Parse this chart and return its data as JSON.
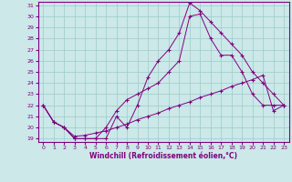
{
  "xlabel": "Windchill (Refroidissement éolien,°C)",
  "background_color": "#cce8e8",
  "line_color": "#800080",
  "grid_color": "#99cccc",
  "xlim": [
    -0.5,
    23.5
  ],
  "ylim": [
    18.7,
    31.3
  ],
  "xticks": [
    0,
    1,
    2,
    3,
    4,
    5,
    6,
    7,
    8,
    9,
    10,
    11,
    12,
    13,
    14,
    15,
    16,
    17,
    18,
    19,
    20,
    21,
    22,
    23
  ],
  "yticks": [
    19,
    20,
    21,
    22,
    23,
    24,
    25,
    26,
    27,
    28,
    29,
    30,
    31
  ],
  "series": [
    {
      "x": [
        0,
        1,
        2,
        3,
        4,
        5,
        6,
        7,
        8,
        9,
        10,
        11,
        12,
        13,
        14,
        15,
        16,
        17,
        18,
        19,
        20,
        21,
        22,
        23
      ],
      "y": [
        22,
        20.5,
        20,
        19,
        19,
        19,
        19,
        21,
        20,
        22,
        24.5,
        26,
        27,
        28.5,
        31.2,
        30.5,
        29.5,
        28.5,
        27.5,
        26.5,
        25,
        24,
        23,
        22
      ]
    },
    {
      "x": [
        0,
        1,
        2,
        3,
        4,
        5,
        6,
        7,
        8,
        9,
        10,
        11,
        12,
        13,
        14,
        15,
        16,
        17,
        18,
        19,
        20,
        21,
        22,
        23
      ],
      "y": [
        22,
        20.5,
        20,
        19,
        19,
        19,
        20,
        21.5,
        22.5,
        23,
        23.5,
        24,
        25,
        26,
        30,
        30.2,
        28,
        26.5,
        26.5,
        25,
        23,
        22,
        22,
        22
      ]
    },
    {
      "x": [
        0,
        1,
        2,
        3,
        4,
        5,
        6,
        7,
        8,
        9,
        10,
        11,
        12,
        13,
        14,
        15,
        16,
        17,
        18,
        19,
        20,
        21,
        22,
        23
      ],
      "y": [
        22,
        20.5,
        20,
        19.2,
        19.3,
        19.5,
        19.7,
        20,
        20.3,
        20.7,
        21,
        21.3,
        21.7,
        22,
        22.3,
        22.7,
        23,
        23.3,
        23.7,
        24,
        24.3,
        24.7,
        21.5,
        22
      ]
    }
  ]
}
